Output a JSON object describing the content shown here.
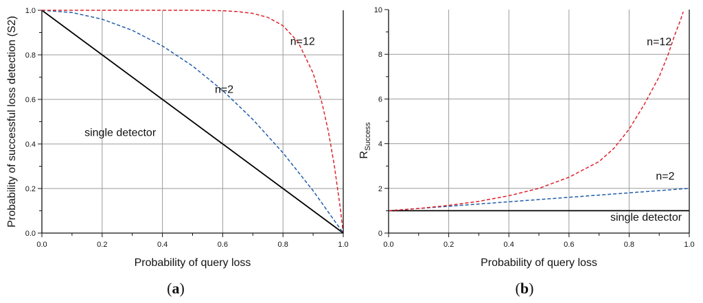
{
  "colors": {
    "grid": "#9a9a9a",
    "axis": "#111111",
    "red": "#e0202a",
    "blue": "#1f5ba8",
    "black": "#000000"
  },
  "chart_data": [
    {
      "id": "a",
      "type": "line",
      "panel_label": "a",
      "xlabel": "Probability of query loss",
      "ylabel": "Probability of successful loss detection (S2)",
      "xlim": [
        0,
        1
      ],
      "ylim": [
        0,
        1
      ],
      "xticks": [
        0,
        0.2,
        0.4,
        0.6,
        0.8,
        1.0
      ],
      "xtick_labels": [
        "0.0",
        "0.2",
        "0.4",
        "0.6",
        "0.8",
        "1.0"
      ],
      "yticks": [
        0,
        0.2,
        0.4,
        0.6,
        0.8,
        1.0
      ],
      "ytick_labels": [
        "0.0",
        "0.2",
        "0.4",
        "0.6",
        "0.8",
        "1.0"
      ],
      "grid": true,
      "series": [
        {
          "id": "single-detector",
          "color": "#000000",
          "dash": "solid",
          "x": [
            0,
            0.2,
            0.4,
            0.6,
            0.8,
            1.0
          ],
          "y": [
            1,
            0.8,
            0.6,
            0.4,
            0.2,
            0
          ]
        },
        {
          "id": "n2",
          "color": "#1f5ba8",
          "dash": "dashed",
          "x": [
            0,
            0.1,
            0.2,
            0.3,
            0.4,
            0.5,
            0.6,
            0.7,
            0.8,
            0.9,
            1.0
          ],
          "y": [
            1,
            0.99,
            0.96,
            0.91,
            0.84,
            0.75,
            0.64,
            0.51,
            0.36,
            0.19,
            0
          ]
        },
        {
          "id": "n12",
          "color": "#e0202a",
          "dash": "dashed",
          "x": [
            0,
            0.2,
            0.4,
            0.5,
            0.6,
            0.65,
            0.7,
            0.75,
            0.8,
            0.85,
            0.9,
            0.93,
            0.95,
            0.97,
            0.99,
            1.0
          ],
          "y": [
            1,
            1,
            1,
            1,
            0.998,
            0.994,
            0.986,
            0.968,
            0.931,
            0.858,
            0.718,
            0.581,
            0.46,
            0.306,
            0.114,
            0
          ]
        }
      ],
      "annotations": [
        {
          "id": "n12",
          "text": "n=12",
          "x": 0.865,
          "y": 0.845
        },
        {
          "id": "n2",
          "text": "n=2",
          "x": 0.605,
          "y": 0.63
        },
        {
          "id": "single",
          "text": "single detector",
          "x": 0.26,
          "y": 0.435
        }
      ]
    },
    {
      "id": "b",
      "type": "line",
      "panel_label": "b",
      "xlabel": "Probability of query loss",
      "ylabel_main": "R",
      "ylabel_sub": "Success",
      "xlim": [
        0,
        1
      ],
      "ylim": [
        0,
        10
      ],
      "xticks": [
        0,
        0.2,
        0.4,
        0.6,
        0.8,
        1.0
      ],
      "xtick_labels": [
        "0.0",
        "0.2",
        "0.4",
        "0.6",
        "0.8",
        "1.0"
      ],
      "yticks": [
        0,
        2,
        4,
        6,
        8,
        10
      ],
      "ytick_labels": [
        "0",
        "2",
        "4",
        "6",
        "8",
        "10"
      ],
      "grid": true,
      "series": [
        {
          "id": "single-detector",
          "color": "#000000",
          "dash": "solid",
          "x": [
            0,
            1.0
          ],
          "y": [
            1,
            1
          ]
        },
        {
          "id": "n2",
          "color": "#1f5ba8",
          "dash": "dashed",
          "x": [
            0,
            0.2,
            0.4,
            0.6,
            0.8,
            1.0
          ],
          "y": [
            1,
            1.2,
            1.4,
            1.6,
            1.8,
            2.0
          ]
        },
        {
          "id": "n12",
          "color": "#e0202a",
          "dash": "dashed",
          "x": [
            0,
            0.1,
            0.2,
            0.3,
            0.4,
            0.5,
            0.6,
            0.7,
            0.75,
            0.8,
            0.85,
            0.9,
            0.93,
            0.95,
            0.97,
            0.98
          ],
          "y": [
            1,
            1.1,
            1.24,
            1.42,
            1.67,
            2.0,
            2.5,
            3.2,
            3.8,
            4.65,
            5.75,
            7.0,
            8.0,
            8.8,
            9.5,
            9.9
          ]
        }
      ],
      "annotations": [
        {
          "id": "n12",
          "text": "n=12",
          "x": 0.9,
          "y": 8.4
        },
        {
          "id": "n2",
          "text": "n=2",
          "x": 0.92,
          "y": 2.4
        },
        {
          "id": "single",
          "text": "single detector",
          "x": 0.975,
          "y": 0.55
        }
      ]
    }
  ]
}
